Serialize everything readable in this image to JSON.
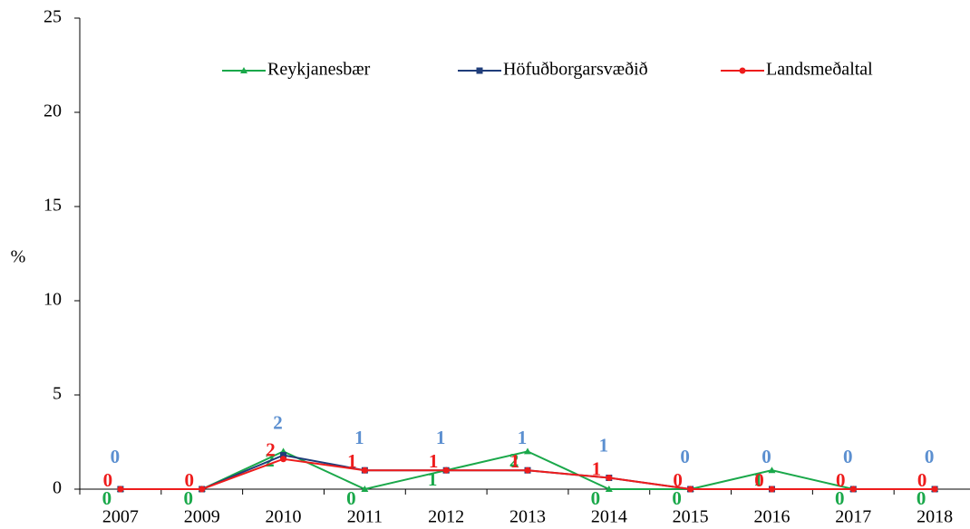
{
  "chart_data": {
    "type": "line",
    "y_label": "%",
    "categories": [
      "2007",
      "2009",
      "2010",
      "2011",
      "2012",
      "2013",
      "2014",
      "2015",
      "2016",
      "2017",
      "2018"
    ],
    "series": [
      {
        "name": "Reykjanesbær",
        "color": "#1aa84a",
        "marker": "triangle",
        "values": [
          0,
          0,
          2.0,
          0,
          1.0,
          2.0,
          0,
          0,
          1.0,
          0,
          0
        ],
        "value_labels": [
          "0",
          "0",
          "2",
          "0",
          "1",
          "2",
          "0",
          "0",
          "1",
          "0",
          "0"
        ]
      },
      {
        "name": "Höfuðborgarsvæðið",
        "color": "#1f3d7a",
        "marker": "square",
        "values": [
          0,
          0,
          1.8,
          1.0,
          1.0,
          1.0,
          0.6,
          0,
          0,
          0,
          0
        ],
        "value_labels": [
          "0",
          null,
          "2",
          "1",
          "1",
          "1",
          "1",
          "0",
          "0",
          "0",
          "0"
        ]
      },
      {
        "name": "Landsmeðaltal",
        "color": "#ee1c1c",
        "marker": "circle",
        "values": [
          0,
          0,
          1.6,
          1.0,
          1.0,
          1.0,
          0.6,
          0,
          0,
          0,
          0
        ],
        "value_labels": [
          "0",
          "0",
          "2",
          "1",
          "1",
          "1",
          "1",
          "0",
          "0",
          "0",
          "0"
        ]
      }
    ],
    "ylim": [
      0,
      25
    ],
    "yticks": [
      0,
      5,
      10,
      15,
      20,
      25
    ],
    "legend": "top-right",
    "grid": false
  }
}
